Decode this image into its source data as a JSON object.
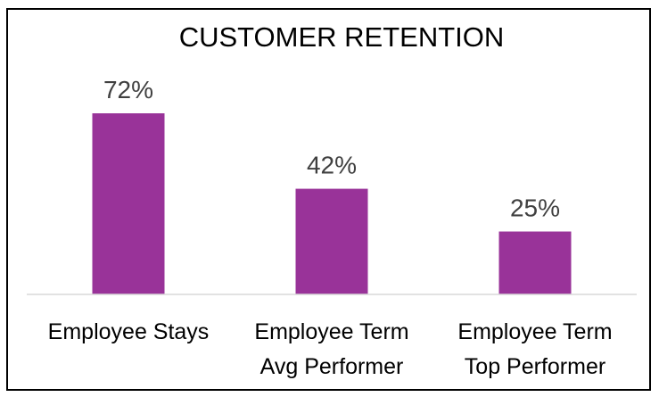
{
  "chart_data": {
    "type": "bar",
    "title": "CUSTOMER RETENTION",
    "categories": [
      [
        "Employee Stays"
      ],
      [
        "Employee Term",
        "Avg Performer"
      ],
      [
        "Employee Term",
        "Top Performer"
      ]
    ],
    "values": [
      72,
      42,
      25
    ],
    "data_labels": [
      "72%",
      "42%",
      "25%"
    ],
    "value_unit": "%",
    "ylim": [
      0,
      80
    ],
    "grid": false,
    "legend": "none",
    "bar_color": "#993399",
    "axis_color": "#d9d9d9",
    "label_color": "#404040"
  }
}
